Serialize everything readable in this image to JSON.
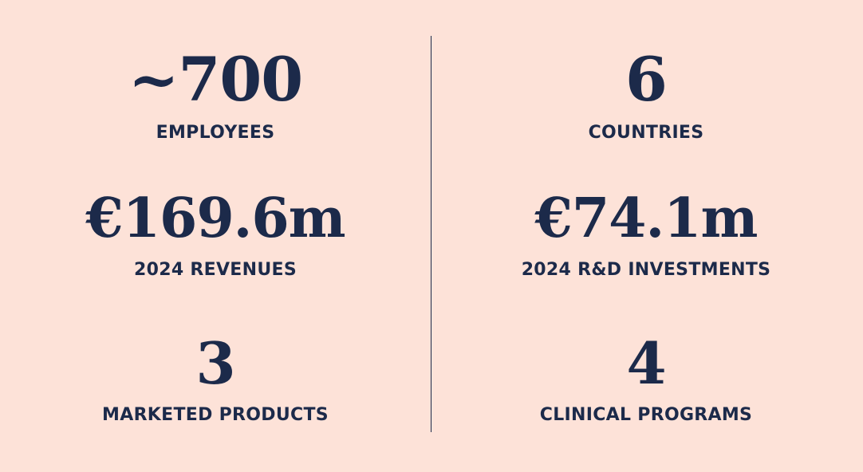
{
  "stats": {
    "left": [
      {
        "value": "~700",
        "label": "EMPLOYEES"
      },
      {
        "value": "€169.6m",
        "label": "2024 REVENUES"
      },
      {
        "value": "3",
        "label": "MARKETED PRODUCTS"
      }
    ],
    "right": [
      {
        "value": "6",
        "label": "COUNTRIES"
      },
      {
        "value": "€74.1m",
        "label": "2024 R&D INVESTMENTS"
      },
      {
        "value": "4",
        "label": "CLINICAL PROGRAMS"
      }
    ]
  },
  "colors": {
    "background": "#fde2d8",
    "text": "#1c2a4a"
  }
}
